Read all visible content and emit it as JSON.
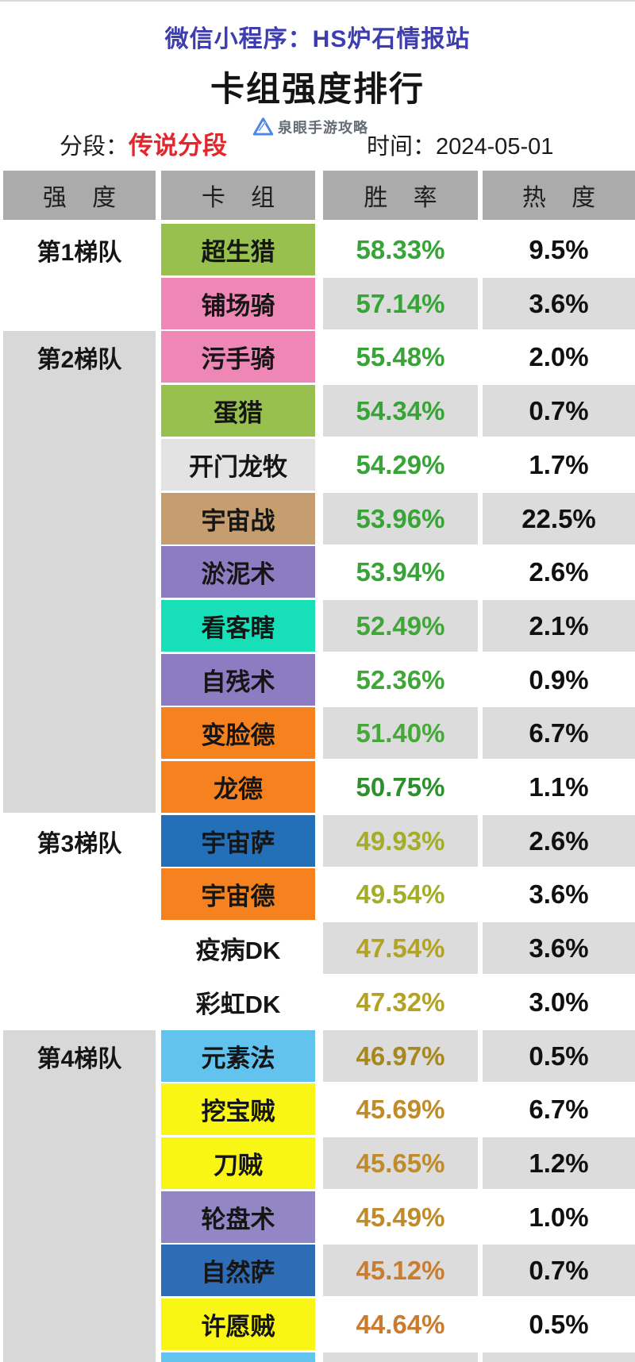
{
  "header": {
    "app_line": "微信小程序：HS炉石情报站",
    "title": "卡组强度排行",
    "segment_label": "分段：",
    "segment_value": "传说分段",
    "watermark": "泉眼手游攻略",
    "time_label": "时间：",
    "time_value": "2024-05-01"
  },
  "colors": {
    "app_line_blue": "#3d3db0",
    "segment_red": "#e2262c",
    "watermark_blue": "#4a86e8",
    "header_cell_bg": "#ababab",
    "tier_shade_bg": "#d8d8d8",
    "row_alt_bg": "#dcdcdc",
    "row_plain_bg": "#ffffff"
  },
  "table": {
    "columns": [
      "强 度",
      "卡 组",
      "胜 率",
      "热 度"
    ],
    "tiers": [
      {
        "label": "第1梯队",
        "start": 0,
        "count": 2,
        "shaded": false
      },
      {
        "label": "第2梯队",
        "start": 2,
        "count": 9,
        "shaded": true
      },
      {
        "label": "第3梯队",
        "start": 11,
        "count": 4,
        "shaded": false
      },
      {
        "label": "第4梯队",
        "start": 15,
        "count": 7,
        "shaded": true
      }
    ],
    "rows": [
      {
        "deck": "超生猎",
        "deck_color": "#97c04f",
        "win": "58.33%",
        "win_color": "#38a438",
        "heat": "9.5%"
      },
      {
        "deck": "铺场骑",
        "deck_color": "#ee87b6",
        "win": "57.14%",
        "win_color": "#38a438",
        "heat": "3.6%"
      },
      {
        "deck": "污手骑",
        "deck_color": "#ee87b6",
        "win": "55.48%",
        "win_color": "#38a438",
        "heat": "2.0%"
      },
      {
        "deck": "蛋猎",
        "deck_color": "#97c04f",
        "win": "54.34%",
        "win_color": "#38a438",
        "heat": "0.7%"
      },
      {
        "deck": "开门龙牧",
        "deck_color": "#e3e3e3",
        "win": "54.29%",
        "win_color": "#38a438",
        "heat": "1.7%"
      },
      {
        "deck": "宇宙战",
        "deck_color": "#c59d6e",
        "win": "53.96%",
        "win_color": "#38a438",
        "heat": "22.5%"
      },
      {
        "deck": "淤泥术",
        "deck_color": "#8d7cc1",
        "win": "53.94%",
        "win_color": "#38a438",
        "heat": "2.6%"
      },
      {
        "deck": "看客瞎",
        "deck_color": "#19dfb8",
        "win": "52.49%",
        "win_color": "#40a63a",
        "heat": "2.1%"
      },
      {
        "deck": "自残术",
        "deck_color": "#8d7cc1",
        "win": "52.36%",
        "win_color": "#40a63a",
        "heat": "0.9%"
      },
      {
        "deck": "变脸德",
        "deck_color": "#f5821f",
        "win": "51.40%",
        "win_color": "#46a838",
        "heat": "6.7%"
      },
      {
        "deck": "龙德",
        "deck_color": "#f5821f",
        "win": "50.75%",
        "win_color": "#2e8f2e",
        "heat": "1.1%"
      },
      {
        "deck": "宇宙萨",
        "deck_color": "#2470b8",
        "win": "49.93%",
        "win_color": "#a4ad29",
        "heat": "2.6%"
      },
      {
        "deck": "宇宙德",
        "deck_color": "#f5821f",
        "win": "49.54%",
        "win_color": "#a4ad29",
        "heat": "3.6%"
      },
      {
        "deck": "疫病DK",
        "deck_color": null,
        "win": "47.54%",
        "win_color": "#b2a324",
        "heat": "3.6%"
      },
      {
        "deck": "彩虹DK",
        "deck_color": null,
        "win": "47.32%",
        "win_color": "#b2a324",
        "heat": "3.0%"
      },
      {
        "deck": "元素法",
        "deck_color": "#62c3ee",
        "win": "46.97%",
        "win_color": "#a8871f",
        "heat": "0.5%"
      },
      {
        "deck": "挖宝贼",
        "deck_color": "#f9f515",
        "win": "45.69%",
        "win_color": "#bf8b2b",
        "heat": "6.7%"
      },
      {
        "deck": "刀贼",
        "deck_color": "#f9f515",
        "win": "45.65%",
        "win_color": "#bf8b2b",
        "heat": "1.2%"
      },
      {
        "deck": "轮盘术",
        "deck_color": "#9386c5",
        "win": "45.49%",
        "win_color": "#bf8b2b",
        "heat": "1.0%"
      },
      {
        "deck": "自然萨",
        "deck_color": "#2e6cb5",
        "win": "45.12%",
        "win_color": "#c97d33",
        "heat": "0.7%"
      },
      {
        "deck": "许愿贼",
        "deck_color": "#f9f515",
        "win": "44.64%",
        "win_color": "#cc7a2e",
        "heat": "0.5%"
      },
      {
        "deck": "",
        "deck_color": "#62c3ee",
        "win": "",
        "win_color": null,
        "heat": ""
      }
    ]
  }
}
